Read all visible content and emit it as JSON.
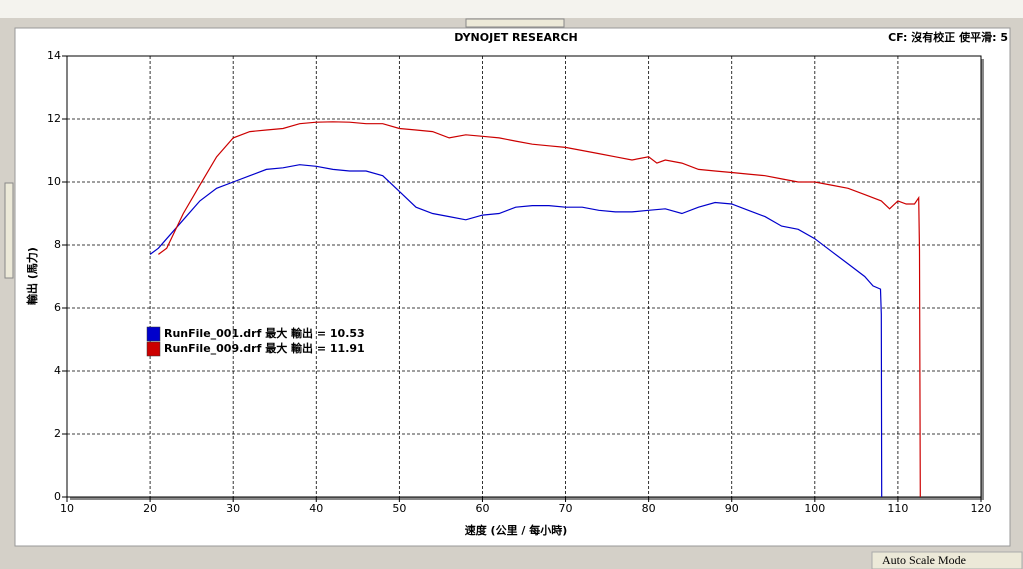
{
  "chart_data": {
    "type": "line",
    "title": "DYNOJET RESEARCH",
    "subtitle": "CF: 沒有校正  使平滑: 5",
    "xlabel": "速度 (公里 / 每小時)",
    "ylabel": "輸出 (馬力)",
    "xlim": [
      10,
      120
    ],
    "xticks": [
      10,
      20,
      30,
      40,
      50,
      60,
      70,
      80,
      90,
      100,
      110,
      120
    ],
    "ylim": [
      0,
      14
    ],
    "yticks": [
      0,
      2,
      4,
      6,
      8,
      10,
      12,
      14
    ],
    "grid": true,
    "series": [
      {
        "name": "RunFile_001.drf 最大 輸出 = 10.53",
        "color": "#0000cc",
        "x": [
          20,
          21,
          22,
          24,
          26,
          28,
          30,
          32,
          34,
          36,
          38,
          40,
          42,
          44,
          46,
          48,
          50,
          52,
          54,
          56,
          58,
          60,
          62,
          64,
          66,
          68,
          70,
          72,
          74,
          76,
          78,
          80,
          82,
          84,
          86,
          88,
          90,
          92,
          94,
          96,
          98,
          100,
          102,
          104,
          106,
          107,
          107.9,
          108,
          108.05
        ],
        "values": [
          7.7,
          7.9,
          8.2,
          8.8,
          9.4,
          9.8,
          10.0,
          10.2,
          10.4,
          10.45,
          10.55,
          10.5,
          10.4,
          10.35,
          10.35,
          10.2,
          9.7,
          9.2,
          9.0,
          8.9,
          8.8,
          8.95,
          9.0,
          9.2,
          9.25,
          9.25,
          9.2,
          9.2,
          9.1,
          9.05,
          9.05,
          9.1,
          9.15,
          9.0,
          9.2,
          9.35,
          9.3,
          9.1,
          8.9,
          8.6,
          8.5,
          8.2,
          7.8,
          7.4,
          7.0,
          6.7,
          6.6,
          5.8,
          0
        ]
      },
      {
        "name": "RunFile_009.drf 最大 輸出 = 11.91",
        "color": "#cc0000",
        "x": [
          21,
          22,
          24,
          26,
          28,
          30,
          32,
          34,
          36,
          38,
          40,
          42,
          44,
          46,
          48,
          50,
          52,
          54,
          56,
          58,
          60,
          62,
          64,
          66,
          68,
          70,
          72,
          74,
          76,
          78,
          80,
          81,
          82,
          84,
          86,
          88,
          90,
          92,
          94,
          96,
          98,
          100,
          102,
          104,
          106,
          108,
          109,
          110,
          111,
          112,
          112.5,
          112.6,
          112.7
        ],
        "values": [
          7.7,
          7.9,
          9.0,
          9.9,
          10.8,
          11.4,
          11.6,
          11.65,
          11.7,
          11.85,
          11.9,
          11.91,
          11.9,
          11.85,
          11.85,
          11.7,
          11.65,
          11.6,
          11.4,
          11.5,
          11.45,
          11.4,
          11.3,
          11.2,
          11.15,
          11.1,
          11.0,
          10.9,
          10.8,
          10.7,
          10.8,
          10.6,
          10.7,
          10.6,
          10.4,
          10.35,
          10.3,
          10.25,
          10.2,
          10.1,
          10.0,
          10.0,
          9.9,
          9.8,
          9.6,
          9.4,
          9.15,
          9.4,
          9.3,
          9.3,
          9.5,
          7.8,
          0
        ]
      }
    ]
  },
  "status": "Auto Scale Mode"
}
